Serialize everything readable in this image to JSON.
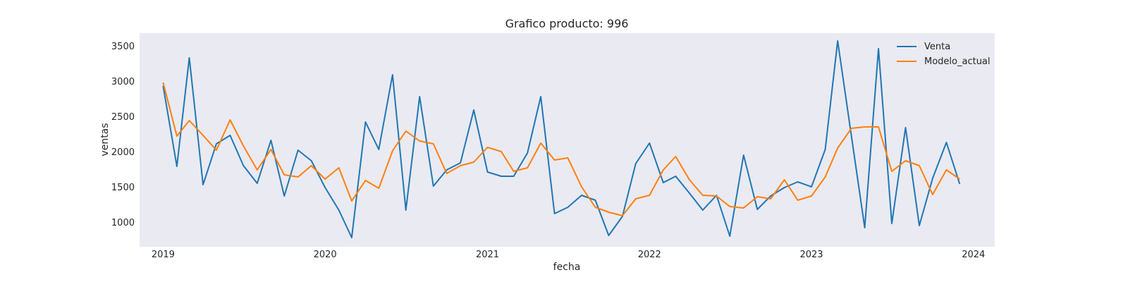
{
  "chart_data": {
    "type": "line",
    "title": "Grafico producto: 996",
    "xlabel": "fecha",
    "ylabel": "ventas",
    "x_tick_labels": [
      "2019",
      "2020",
      "2021",
      "2022",
      "2023",
      "2024"
    ],
    "y_tick_labels": [
      "1000",
      "1500",
      "2000",
      "2500",
      "3000",
      "3500"
    ],
    "y_ticks": [
      1000,
      1500,
      2000,
      2500,
      3000,
      3500
    ],
    "xlim": [
      "2018-11-09",
      "2024-02-18"
    ],
    "ylim": [
      650,
      3680
    ],
    "grid": false,
    "legend_position": "top-right",
    "x": [
      "2019-01",
      "2019-02",
      "2019-03",
      "2019-04",
      "2019-05",
      "2019-06",
      "2019-07",
      "2019-08",
      "2019-09",
      "2019-10",
      "2019-11",
      "2019-12",
      "2020-01",
      "2020-02",
      "2020-03",
      "2020-04",
      "2020-05",
      "2020-06",
      "2020-07",
      "2020-08",
      "2020-09",
      "2020-10",
      "2020-11",
      "2020-12",
      "2021-01",
      "2021-02",
      "2021-03",
      "2021-04",
      "2021-05",
      "2021-06",
      "2021-07",
      "2021-08",
      "2021-09",
      "2021-10",
      "2021-11",
      "2021-12",
      "2022-01",
      "2022-02",
      "2022-03",
      "2022-04",
      "2022-05",
      "2022-06",
      "2022-07",
      "2022-08",
      "2022-09",
      "2022-10",
      "2022-11",
      "2022-12",
      "2023-01",
      "2023-02",
      "2023-03",
      "2023-04",
      "2023-05",
      "2023-06",
      "2023-07",
      "2023-08",
      "2023-09",
      "2023-10",
      "2023-11",
      "2023-12"
    ],
    "series": [
      {
        "name": "Venta",
        "color": "#1f77b4",
        "values": [
          2930,
          1790,
          3330,
          1530,
          2110,
          2230,
          1800,
          1550,
          2160,
          1370,
          2020,
          1870,
          1490,
          1170,
          780,
          2420,
          2030,
          3090,
          1170,
          2780,
          1510,
          1740,
          1840,
          2590,
          1710,
          1650,
          1650,
          1980,
          2780,
          1120,
          1210,
          1380,
          1310,
          810,
          1080,
          1830,
          2120,
          1560,
          1650,
          1410,
          1170,
          1380,
          800,
          1950,
          1180,
          1370,
          1490,
          1570,
          1500,
          2030,
          3570,
          2220,
          920,
          3460,
          980,
          2340,
          950,
          1620,
          2130,
          1540
        ]
      },
      {
        "name": "Modelo_actual",
        "color": "#ff7f0e",
        "values": [
          2980,
          2220,
          2440,
          2230,
          2020,
          2450,
          2080,
          1740,
          2030,
          1670,
          1640,
          1800,
          1610,
          1770,
          1300,
          1590,
          1480,
          2010,
          2290,
          2150,
          2110,
          1690,
          1800,
          1850,
          2060,
          2000,
          1720,
          1770,
          2120,
          1880,
          1910,
          1500,
          1210,
          1140,
          1090,
          1330,
          1380,
          1740,
          1930,
          1600,
          1380,
          1370,
          1220,
          1200,
          1360,
          1330,
          1600,
          1310,
          1370,
          1640,
          2050,
          2330,
          2350,
          2350,
          1720,
          1870,
          1800,
          1390,
          1740,
          1610
        ]
      }
    ]
  }
}
